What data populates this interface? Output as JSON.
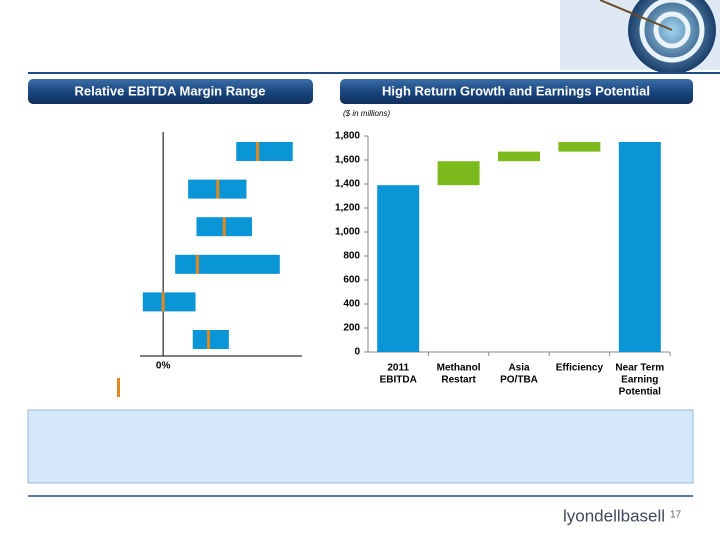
{
  "headers": {
    "left": "Relative EBITDA Margin Range",
    "right": "High Return Growth and Earnings Potential"
  },
  "footer": {
    "logo": "lyondellbasell",
    "page": "17"
  },
  "chart_data": [
    {
      "type": "range",
      "xlim": [
        -2.5,
        15
      ],
      "xticks": [
        {
          "value": 0,
          "label": "0%"
        }
      ],
      "color": "#0a95d6",
      "marker_color": "#e0891e",
      "series": [
        {
          "low": [
            7.9,
            2.7,
            3.6,
            1.3,
            -2.2,
            3.2
          ],
          "high": [
            14.0,
            9.0,
            9.6,
            12.6,
            3.5,
            7.1
          ],
          "mid": [
            10.2,
            5.9,
            6.6,
            3.7,
            0,
            4.9
          ]
        }
      ]
    },
    {
      "type": "waterfall",
      "subtitle": "($ in millions)",
      "categories": [
        [
          "2011",
          "EBITDA"
        ],
        [
          "Methanol",
          "Restart"
        ],
        [
          "Asia",
          "PO/TBA"
        ],
        [
          "Efficiency"
        ],
        [
          "Near Term",
          "Earning",
          "Potential"
        ]
      ],
      "values": [
        1390,
        200,
        80,
        80,
        1750
      ],
      "totals": [
        true,
        false,
        false,
        false,
        true
      ],
      "total_color": "#0a95d6",
      "step_color": "#7dba1e",
      "ylim": [
        0,
        1800
      ],
      "yticks": [
        0,
        200,
        400,
        600,
        800,
        {
          "value": 1000,
          "label": "1,000"
        },
        {
          "value": 1200,
          "label": "1,200"
        },
        {
          "value": 1400,
          "label": "1,400"
        },
        {
          "value": 1600,
          "label": "1,600"
        },
        {
          "value": 1800,
          "label": "1,800"
        }
      ]
    }
  ]
}
